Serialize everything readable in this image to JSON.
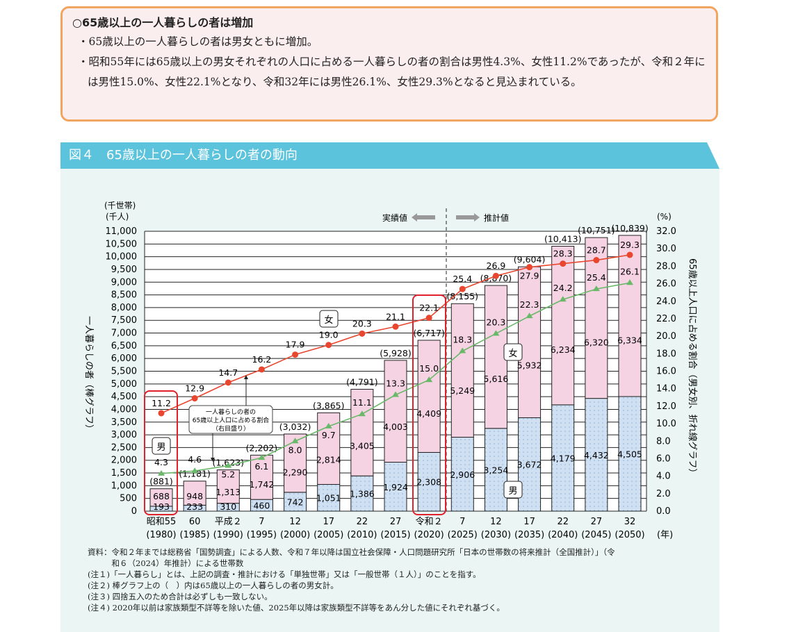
{
  "summary": {
    "heading": "○65歳以上の一人暮らしの者は増加",
    "bullets": [
      "・65歳以上の一人暮らしの者は男女ともに増加。",
      "・昭和55年には65歳以上の男女それぞれの人口に占める一人暮らしの者の割合は男性4.3%、女性11.2%であったが、令和２年には男性15.0%、女性22.1%となり、令和32年には男性26.1%、女性29.3%となると見込まれている。"
    ]
  },
  "figure": {
    "title": "図４　65歳以上の一人暮らしの者の動向"
  },
  "chart_data": {
    "type": "bar+line",
    "left_unit": [
      "(千世帯)",
      "(千人)"
    ],
    "left_axis_label": "一人暮らしの者（棒グラフ）",
    "right_unit": "(%)",
    "right_axis_label": "65歳以上人口に占める割合（男女別、折れ線グラフ）",
    "x_unit": "(年)",
    "ylim_left": [
      0,
      11000
    ],
    "ylim_right": [
      0,
      32
    ],
    "left_ticks": [
      0,
      500,
      1000,
      1500,
      2000,
      2500,
      3000,
      3500,
      4000,
      4500,
      5000,
      5500,
      6000,
      6500,
      7000,
      7500,
      8000,
      8500,
      9000,
      9500,
      10000,
      10500,
      11000
    ],
    "right_ticks": [
      0.0,
      2.0,
      4.0,
      6.0,
      8.0,
      10.0,
      12.0,
      14.0,
      16.0,
      18.0,
      20.0,
      22.0,
      24.0,
      26.0,
      28.0,
      30.0,
      32.0
    ],
    "categories": [
      "昭和55",
      "60",
      "平成２",
      "7",
      "12",
      "17",
      "22",
      "27",
      "令和２",
      "7",
      "12",
      "17",
      "22",
      "27",
      "32"
    ],
    "years": [
      "(1980)",
      "(1985)",
      "(1990)",
      "(1995)",
      "(2000)",
      "(2005)",
      "(2010)",
      "(2015)",
      "(2020)",
      "(2025)",
      "(2030)",
      "(2035)",
      "(2040)",
      "(2045)",
      "(2050)"
    ],
    "series": [
      {
        "name": "男",
        "kind": "bar",
        "color": "#cfe0f2",
        "values": [
          193,
          233,
          310,
          460,
          742,
          1051,
          1386,
          1924,
          2308,
          2906,
          3254,
          3672,
          4179,
          4432,
          4505
        ]
      },
      {
        "name": "女",
        "kind": "bar",
        "color": "#f5d3e2",
        "values": [
          688,
          948,
          1313,
          1742,
          2290,
          2814,
          3405,
          4003,
          4409,
          5249,
          5616,
          5932,
          6234,
          6320,
          6334
        ]
      },
      {
        "name": "女",
        "kind": "line",
        "color": "#e8462e",
        "values": [
          11.2,
          12.9,
          14.7,
          16.2,
          17.9,
          19.0,
          20.3,
          21.1,
          22.1,
          25.4,
          26.9,
          27.9,
          28.3,
          28.7,
          29.3
        ]
      },
      {
        "name": "男",
        "kind": "line",
        "color": "#6ab86a",
        "values": [
          4.3,
          4.6,
          5.2,
          6.1,
          8.0,
          9.7,
          11.1,
          13.3,
          15.0,
          18.3,
          20.3,
          22.3,
          24.2,
          25.4,
          26.1
        ]
      }
    ],
    "totals": [
      881,
      1181,
      1623,
      2202,
      3032,
      3865,
      4791,
      5928,
      6717,
      8155,
      8870,
      9604,
      10413,
      10751,
      10839
    ],
    "actual_label": "実績値",
    "projected_label": "推計値",
    "callout": [
      "一人暮らしの者の",
      "65歳以上人口に占める割合",
      "（右目盛り）"
    ],
    "labels": {
      "female": "女",
      "male": "男"
    },
    "grid": true
  },
  "notes": [
    "資料：令和２年までは総務省「国勢調査」による人数、令和７年以降は国立社会保障・人口問題研究所「日本の世帯数の将来推計（全国推計）」（令",
    "　　　和６（2024）年推計）による世帯数",
    "(注１)「一人暮らし」とは、上記の調査・推計における「単独世帯」又は「一般世帯（１人）」のことを指す。",
    "(注２) 棒グラフ上の（　）内は65歳以上の一人暮らしの者の男女計。",
    "(注３) 四捨五入のため合計は必ずしも一致しない。",
    "(注４) 2020年以前は家族類型不詳等を除いた値、2025年以降は家族類型不詳等をあん分した値にそれぞれ基づく。"
  ]
}
